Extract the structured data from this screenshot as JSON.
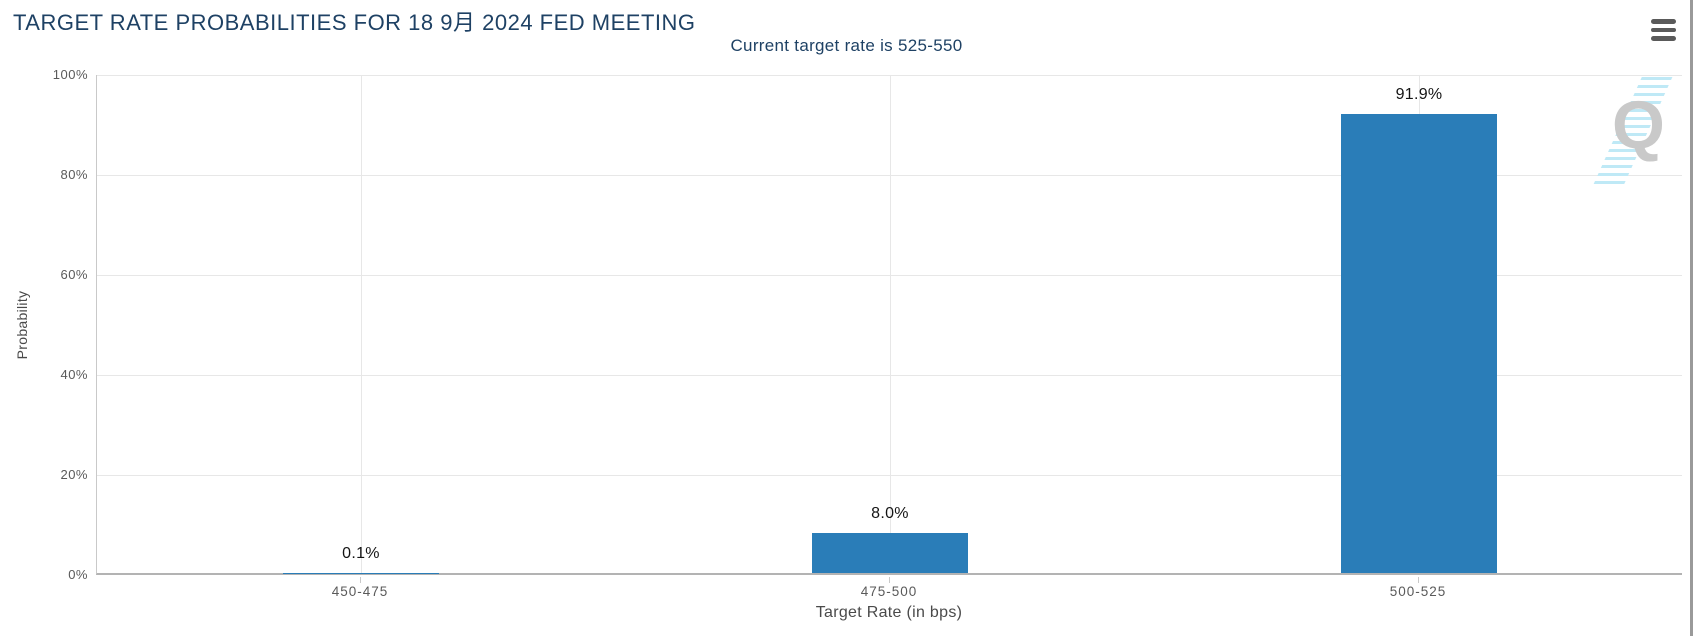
{
  "header": {
    "title": "TARGET RATE PROBABILITIES FOR 18 9月 2024 FED MEETING",
    "subtitle": "Current target rate is 525-550",
    "menu_icon": "hamburger-menu-icon"
  },
  "colors": {
    "bar": "#2a7db8",
    "titleText": "#1e4164",
    "subtitleText": "#1e4164",
    "grid": "#e7e7e7",
    "axisLine": "#c9c9c9",
    "xAxisLine": "#b3b3b3",
    "tickLabel": "#5a5a5a",
    "axisTitle": "#4a4a4a",
    "dataLabel": "#141414",
    "watermarkQ": "#c9c9c9",
    "watermarkStripe": "#bfe9f6",
    "menuIcon": "#5a5a5a",
    "rightBorder": "#9a9a9a"
  },
  "chart_data": {
    "type": "bar",
    "title": "TARGET RATE PROBABILITIES FOR 18 9月 2024 FED MEETING",
    "subtitle": "Current target rate is 525-550",
    "categories": [
      "450-475",
      "475-500",
      "500-525"
    ],
    "values": [
      0.1,
      8.0,
      91.9
    ],
    "value_labels": [
      "0.1%",
      "8.0%",
      "91.9%"
    ],
    "bar_color": "#2a7db8",
    "xlabel": "Target Rate (in bps)",
    "ylabel": "Probability",
    "ylim": [
      0,
      100
    ],
    "ytick_labels": [
      "100%",
      "80%",
      "60%",
      "40%",
      "20%",
      "0%"
    ],
    "grid": true,
    "legend": "none"
  },
  "watermark": {
    "name": "quikstrike-logo",
    "letter": "Q"
  }
}
